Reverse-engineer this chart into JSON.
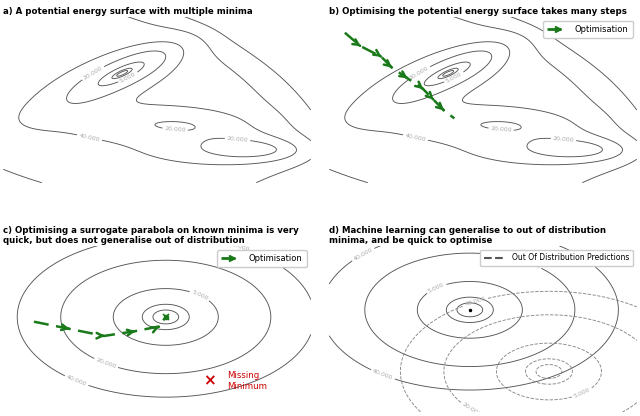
{
  "title_a": "a) A potential energy surface with multiple minima",
  "title_b": "b) Optimising the potential energy surface takes many steps",
  "title_c": "c) Optimising a surrogate parabola on known minima is very\nquick, but does not generalise out of distribution",
  "title_d": "d) Machine learning can generalise to out of distribution\nminima, and be quick to optimise",
  "opt_color": "#1a7a1a",
  "missing_color": "#cc0000",
  "contour_color": "#555555",
  "label_color": "#aaaaaa"
}
